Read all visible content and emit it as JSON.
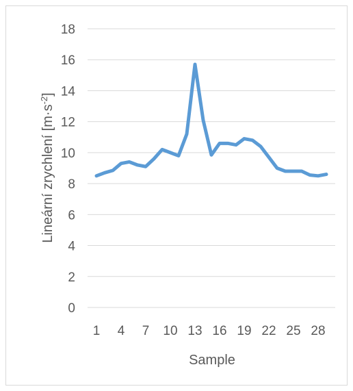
{
  "chart_data": {
    "type": "line",
    "xlabel": "Sample",
    "ylabel_main": "Lineární zrychlení [m·s",
    "ylabel_sup": "-2",
    "ylabel_end": "]",
    "ylim": [
      0,
      18
    ],
    "yticks": [
      "0",
      "2",
      "4",
      "6",
      "8",
      "10",
      "12",
      "14",
      "16",
      "18"
    ],
    "x": [
      1,
      2,
      3,
      4,
      5,
      6,
      7,
      8,
      9,
      10,
      11,
      12,
      13,
      14,
      15,
      16,
      17,
      18,
      19,
      20,
      21,
      22,
      23,
      24,
      25,
      26,
      27,
      28,
      29
    ],
    "xtick_labels": [
      "1",
      "4",
      "7",
      "10",
      "13",
      "16",
      "19",
      "22",
      "25",
      "28"
    ],
    "xtick_values": [
      1,
      4,
      7,
      10,
      13,
      16,
      19,
      22,
      25,
      28
    ],
    "grid": true,
    "legend": "none",
    "series": [
      {
        "color": "#5b9bd5",
        "values": [
          8.5,
          8.7,
          8.85,
          9.3,
          9.4,
          9.2,
          9.1,
          9.6,
          10.2,
          10.0,
          9.8,
          11.2,
          15.7,
          12.1,
          9.85,
          10.6,
          10.6,
          10.5,
          10.9,
          10.8,
          10.4,
          9.7,
          9.0,
          8.8,
          8.8,
          8.8,
          8.55,
          8.5,
          8.6
        ]
      }
    ]
  }
}
